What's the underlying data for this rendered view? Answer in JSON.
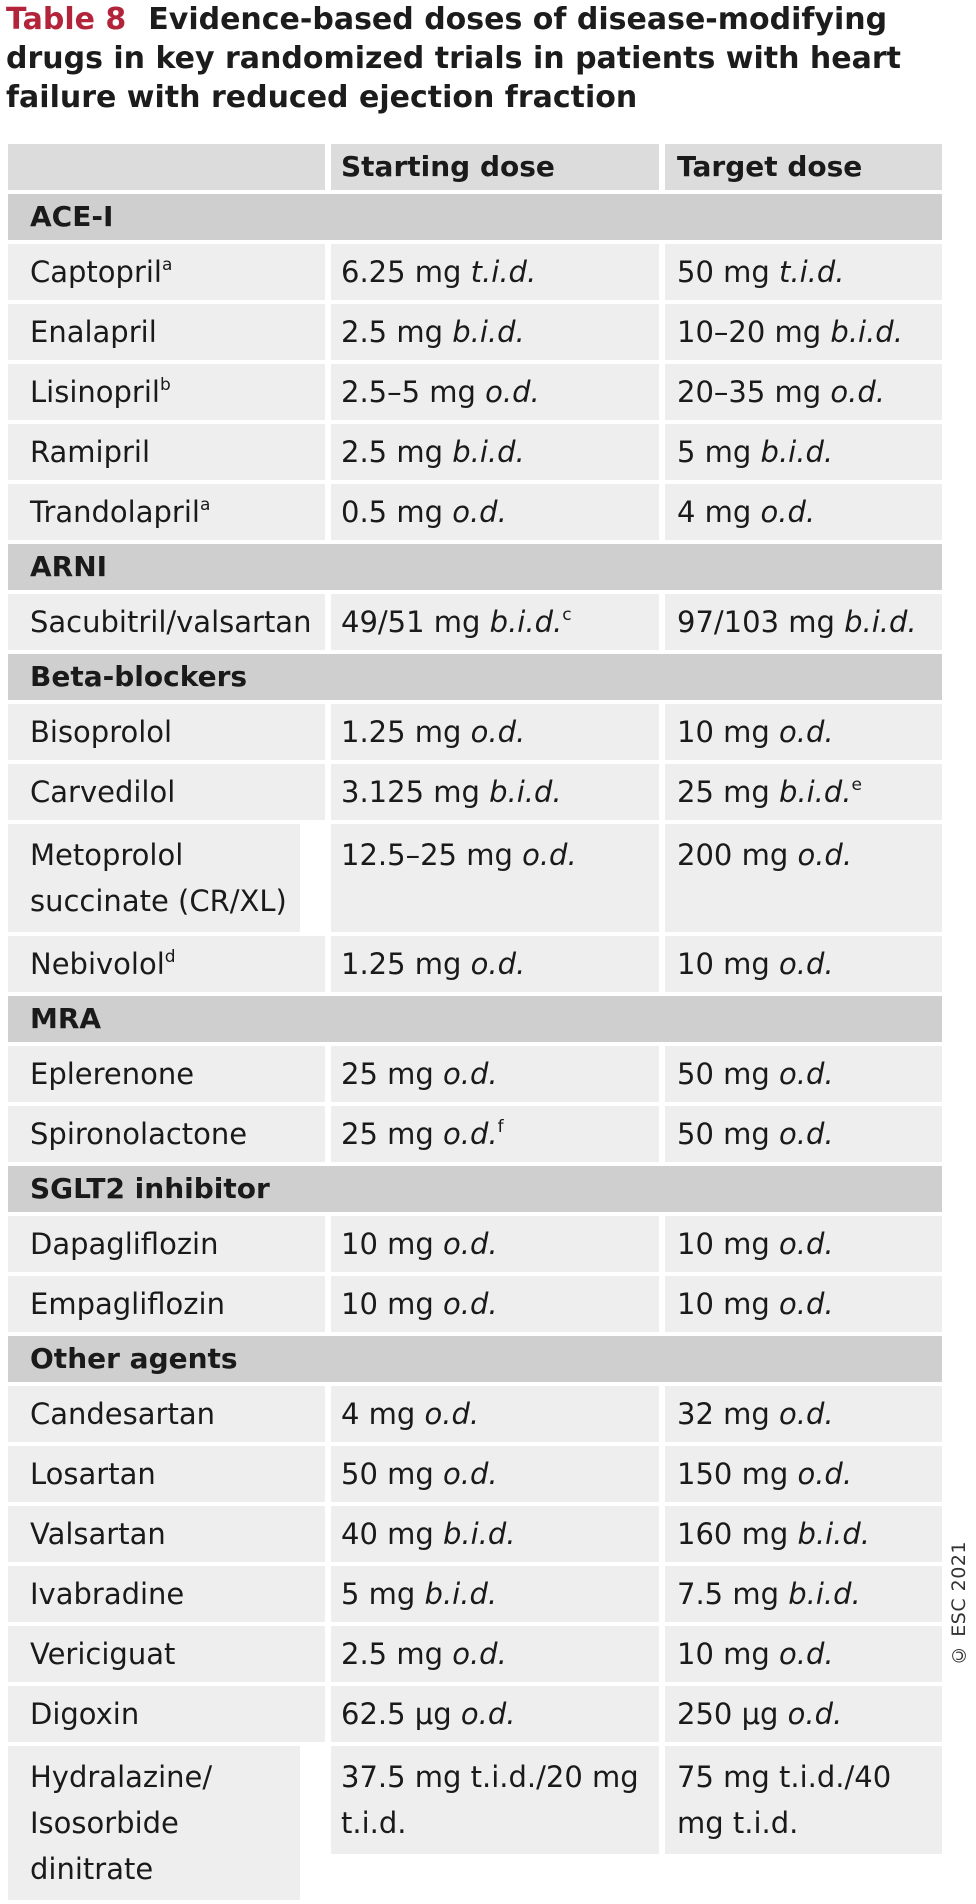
{
  "title": {
    "number": "Table 8",
    "text": "Evidence-based doses of disease-modifying drugs in key randomized trials in patients with heart failure with reduced ejection fraction"
  },
  "columns": [
    "",
    "Starting dose",
    "Target dose"
  ],
  "sections": [
    {
      "name": "ACE-I",
      "rows": [
        {
          "drug": "Captopril",
          "sup": "a",
          "start": "6.25 mg",
          "start_freq": "t.i.d.",
          "start_sup": "",
          "target": "50 mg",
          "target_freq": "t.i.d.",
          "target_sup": ""
        },
        {
          "drug": "Enalapril",
          "sup": "",
          "start": "2.5 mg",
          "start_freq": "b.i.d.",
          "start_sup": "",
          "target": "10–20 mg",
          "target_freq": "b.i.d.",
          "target_sup": ""
        },
        {
          "drug": "Lisinopril",
          "sup": "b",
          "start": "2.5–5 mg",
          "start_freq": "o.d.",
          "start_sup": "",
          "target": "20–35 mg",
          "target_freq": "o.d.",
          "target_sup": ""
        },
        {
          "drug": "Ramipril",
          "sup": "",
          "start": "2.5 mg",
          "start_freq": "b.i.d.",
          "start_sup": "",
          "target": "5 mg",
          "target_freq": "b.i.d.",
          "target_sup": ""
        },
        {
          "drug": "Trandolapril",
          "sup": "a",
          "start": "0.5 mg",
          "start_freq": "o.d.",
          "start_sup": "",
          "target": "4 mg",
          "target_freq": "o.d.",
          "target_sup": ""
        }
      ]
    },
    {
      "name": "ARNI",
      "rows": [
        {
          "drug": "Sacubitril/valsartan",
          "sup": "",
          "start": "49/51 mg",
          "start_freq": "b.i.d.",
          "start_sup": "c",
          "target": "97/103 mg",
          "target_freq": "b.i.d.",
          "target_sup": ""
        }
      ]
    },
    {
      "name": "Beta-blockers",
      "rows": [
        {
          "drug": "Bisoprolol",
          "sup": "",
          "start": "1.25 mg",
          "start_freq": "o.d.",
          "start_sup": "",
          "target": "10 mg",
          "target_freq": "o.d.",
          "target_sup": ""
        },
        {
          "drug": "Carvedilol",
          "sup": "",
          "start": "3.125 mg",
          "start_freq": "b.i.d.",
          "start_sup": "",
          "target": "25 mg",
          "target_freq": "b.i.d.",
          "target_sup": "e"
        },
        {
          "drug": "Metoprolol succinate (CR/XL)",
          "sup": "",
          "start": "12.5–25 mg",
          "start_freq": "o.d.",
          "start_sup": "",
          "target": "200 mg",
          "target_freq": "o.d.",
          "target_sup": ""
        },
        {
          "drug": "Nebivolol",
          "sup": "d",
          "start": "1.25 mg",
          "start_freq": "o.d.",
          "start_sup": "",
          "target": "10 mg",
          "target_freq": "o.d.",
          "target_sup": ""
        }
      ]
    },
    {
      "name": "MRA",
      "rows": [
        {
          "drug": "Eplerenone",
          "sup": "",
          "start": "25 mg",
          "start_freq": "o.d.",
          "start_sup": "",
          "target": "50 mg",
          "target_freq": "o.d.",
          "target_sup": ""
        },
        {
          "drug": "Spironolactone",
          "sup": "",
          "start": "25 mg",
          "start_freq": "o.d.",
          "start_sup": "f",
          "target": "50 mg",
          "target_freq": "o.d.",
          "target_sup": ""
        }
      ]
    },
    {
      "name": "SGLT2 inhibitor",
      "rows": [
        {
          "drug": "Dapagliflozin",
          "sup": "",
          "start": "10 mg",
          "start_freq": "o.d.",
          "start_sup": "",
          "target": "10 mg",
          "target_freq": "o.d.",
          "target_sup": ""
        },
        {
          "drug": "Empagliflozin",
          "sup": "",
          "start": "10 mg",
          "start_freq": "o.d.",
          "start_sup": "",
          "target": "10 mg",
          "target_freq": "o.d.",
          "target_sup": ""
        }
      ]
    },
    {
      "name": "Other agents",
      "rows": [
        {
          "drug": "Candesartan",
          "sup": "",
          "start": "4 mg",
          "start_freq": "o.d.",
          "start_sup": "",
          "target": "32 mg",
          "target_freq": "o.d.",
          "target_sup": ""
        },
        {
          "drug": "Losartan",
          "sup": "",
          "start": "50 mg",
          "start_freq": "o.d.",
          "start_sup": "",
          "target": "150 mg",
          "target_freq": "o.d.",
          "target_sup": ""
        },
        {
          "drug": "Valsartan",
          "sup": "",
          "start": "40 mg",
          "start_freq": "b.i.d.",
          "start_sup": "",
          "target": "160 mg",
          "target_freq": "b.i.d.",
          "target_sup": ""
        },
        {
          "drug": "Ivabradine",
          "sup": "",
          "start": "5 mg",
          "start_freq": "b.i.d.",
          "start_sup": "",
          "target": "7.5 mg",
          "target_freq": "b.i.d.",
          "target_sup": ""
        },
        {
          "drug": "Vericiguat",
          "sup": "",
          "start": "2.5 mg",
          "start_freq": "o.d.",
          "start_sup": "",
          "target": "10 mg",
          "target_freq": "o.d.",
          "target_sup": ""
        },
        {
          "drug": "Digoxin",
          "sup": "",
          "start": "62.5 μg",
          "start_freq": "o.d.",
          "start_sup": "",
          "target": "250 μg",
          "target_freq": "o.d.",
          "target_sup": ""
        },
        {
          "drug": "Hydralazine/ Isosorbide dinitrate",
          "sup": "",
          "start": "37.5 mg t.i.d./20 mg t.i.d.",
          "start_freq": "",
          "start_sup": "",
          "target": "75 mg t.i.d./40 mg t.i.d.",
          "target_freq": "",
          "target_sup": ""
        }
      ]
    }
  ],
  "copyright": "© ESC 2021"
}
